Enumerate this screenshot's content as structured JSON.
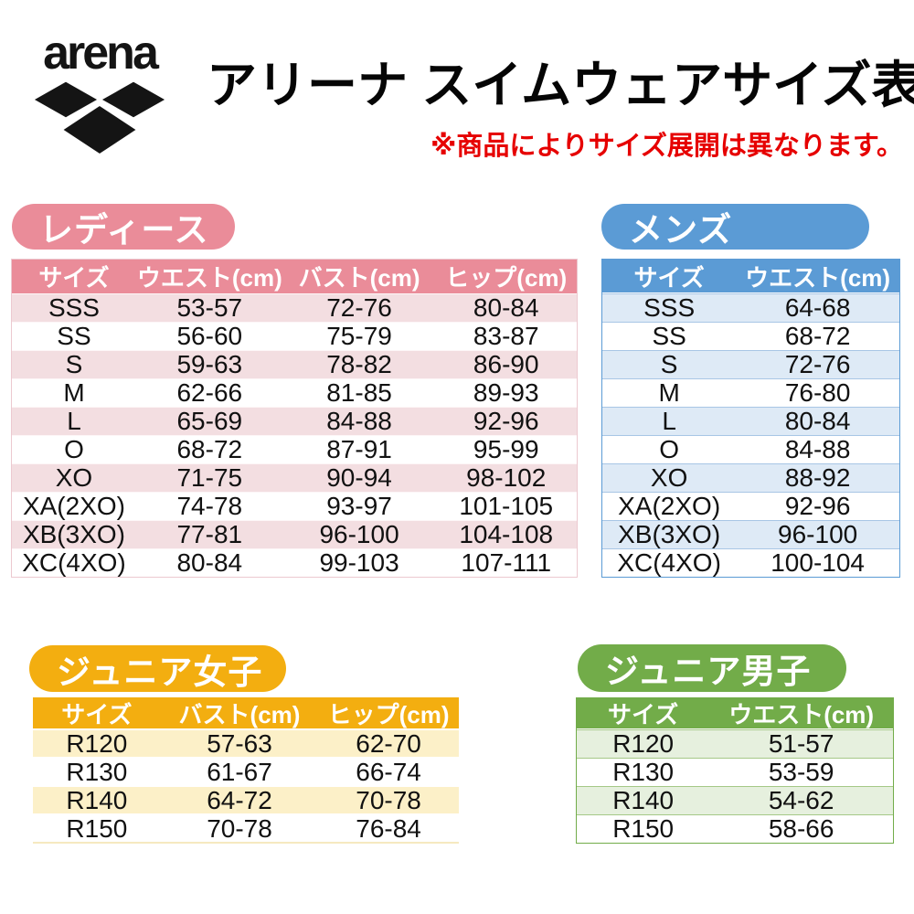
{
  "header": {
    "brand": "arena",
    "title": "アリーナ スイムウェアサイズ表",
    "note": "※商品によりサイズ展開は異なります。"
  },
  "colors": {
    "note_red": "#E60000",
    "logo_black": "#141414",
    "ladies_accent": "#EA8C99",
    "ladies_row": "#F3DEE1",
    "mens_accent": "#5B9BD5",
    "mens_row": "#DEEAF6",
    "junior_girls_accent": "#F3AE10",
    "junior_girls_row": "#FCF0C8",
    "junior_boys_accent": "#72AC49",
    "junior_boys_row": "#E6F0DE"
  },
  "tables": {
    "ladies": {
      "badge": "レディース",
      "columns": [
        "サイズ",
        "ウエスト(cm)",
        "バスト(cm)",
        "ヒップ(cm)"
      ],
      "rows": [
        [
          "SSS",
          "53-57",
          "72-76",
          "80-84"
        ],
        [
          "SS",
          "56-60",
          "75-79",
          "83-87"
        ],
        [
          "S",
          "59-63",
          "78-82",
          "86-90"
        ],
        [
          "M",
          "62-66",
          "81-85",
          "89-93"
        ],
        [
          "L",
          "65-69",
          "84-88",
          "92-96"
        ],
        [
          "O",
          "68-72",
          "87-91",
          "95-99"
        ],
        [
          "XO",
          "71-75",
          "90-94",
          "98-102"
        ],
        [
          "XA(2XO)",
          "74-78",
          "93-97",
          "101-105"
        ],
        [
          "XB(3XO)",
          "77-81",
          "96-100",
          "104-108"
        ],
        [
          "XC(4XO)",
          "80-84",
          "99-103",
          "107-111"
        ]
      ]
    },
    "mens": {
      "badge": "メンズ",
      "columns": [
        "サイズ",
        "ウエスト(cm)"
      ],
      "rows": [
        [
          "SSS",
          "64-68"
        ],
        [
          "SS",
          "68-72"
        ],
        [
          "S",
          "72-76"
        ],
        [
          "M",
          "76-80"
        ],
        [
          "L",
          "80-84"
        ],
        [
          "O",
          "84-88"
        ],
        [
          "XO",
          "88-92"
        ],
        [
          "XA(2XO)",
          "92-96"
        ],
        [
          "XB(3XO)",
          "96-100"
        ],
        [
          "XC(4XO)",
          "100-104"
        ]
      ]
    },
    "junior_girls": {
      "badge": "ジュニア女子",
      "columns": [
        "サイズ",
        "バスト(cm)",
        "ヒップ(cm)"
      ],
      "rows": [
        [
          "R120",
          "57-63",
          "62-70"
        ],
        [
          "R130",
          "61-67",
          "66-74"
        ],
        [
          "R140",
          "64-72",
          "70-78"
        ],
        [
          "R150",
          "70-78",
          "76-84"
        ]
      ]
    },
    "junior_boys": {
      "badge": "ジュニア男子",
      "columns": [
        "サイズ",
        "ウエスト(cm)"
      ],
      "rows": [
        [
          "R120",
          "51-57"
        ],
        [
          "R130",
          "53-59"
        ],
        [
          "R140",
          "54-62"
        ],
        [
          "R150",
          "58-66"
        ]
      ]
    }
  }
}
